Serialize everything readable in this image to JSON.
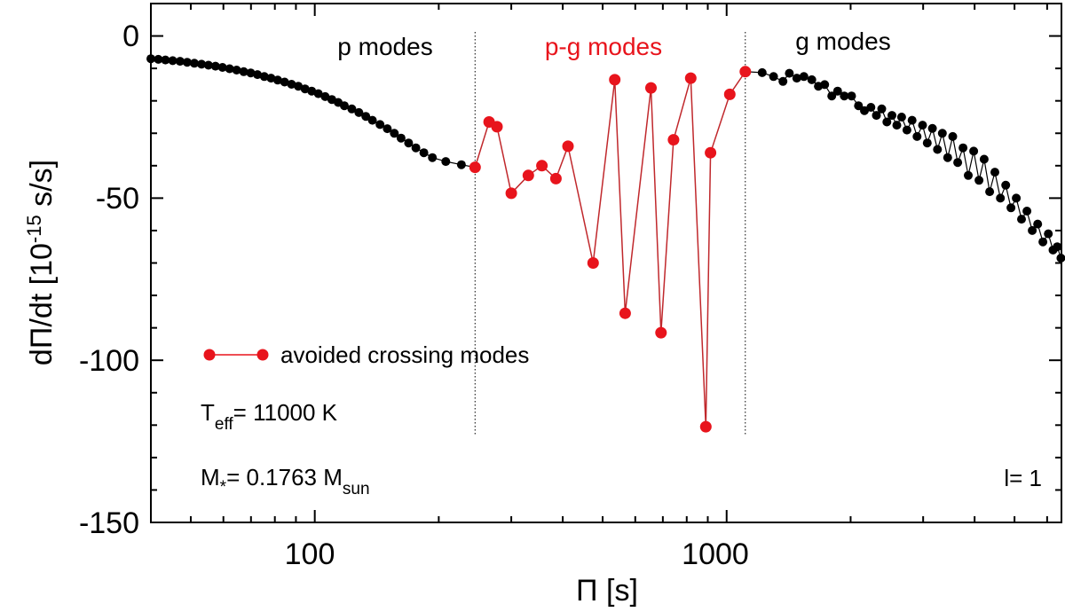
{
  "chart_data": {
    "type": "scatter",
    "xscale": "log",
    "xlim": [
      40,
      6500
    ],
    "ylim": [
      -150,
      10
    ],
    "xlabel": "Π [s]",
    "ylabel": {
      "base": "dΠ/dt [10",
      "exponent": "-15",
      "unit": " s/s]"
    },
    "x_ticks": [
      100,
      1000
    ],
    "x_tick_labels": [
      "100",
      "1000"
    ],
    "y_ticks": [
      0,
      -50,
      -100,
      -150
    ],
    "y_tick_labels": [
      "0",
      "-50",
      "-100",
      "-150"
    ],
    "region_labels": {
      "p": "p modes",
      "pg": "p-g modes",
      "g": "g modes"
    },
    "region_boundaries": [
      245,
      1110
    ],
    "legend": {
      "label": "avoided crossing modes",
      "placement": "lower-left"
    },
    "annotations": {
      "teff": {
        "symbol": "T",
        "sub": "eff",
        "rest": "= 11000 K"
      },
      "mass": {
        "symbol": "M",
        "sub": "*",
        "rest": "= 0.1763 M",
        "sub2": "sun"
      },
      "degree": "l= 1"
    },
    "series": [
      {
        "name": "p modes",
        "color": "#000000",
        "points": [
          [
            40.0,
            -7.0
          ],
          [
            41.7,
            -7.2
          ],
          [
            43.4,
            -7.4
          ],
          [
            45.2,
            -7.6
          ],
          [
            47.1,
            -7.8
          ],
          [
            49.0,
            -8.1
          ],
          [
            51.0,
            -8.4
          ],
          [
            53.1,
            -8.7
          ],
          [
            55.2,
            -9.0
          ],
          [
            57.4,
            -9.3
          ],
          [
            59.7,
            -9.7
          ],
          [
            62.1,
            -10.1
          ],
          [
            64.6,
            -10.5
          ],
          [
            67.2,
            -11.0
          ],
          [
            69.9,
            -11.4
          ],
          [
            72.6,
            -11.9
          ],
          [
            75.4,
            -12.5
          ],
          [
            78.3,
            -13.0
          ],
          [
            81.3,
            -13.6
          ],
          [
            84.5,
            -14.2
          ],
          [
            87.8,
            -14.9
          ],
          [
            91.2,
            -15.5
          ],
          [
            94.7,
            -16.3
          ],
          [
            98.3,
            -17.0
          ],
          [
            102,
            -17.8
          ],
          [
            106,
            -18.7
          ],
          [
            110,
            -19.6
          ],
          [
            114,
            -20.5
          ],
          [
            118,
            -21.5
          ],
          [
            123,
            -22.5
          ],
          [
            128,
            -23.6
          ],
          [
            133,
            -24.8
          ],
          [
            138,
            -26.0
          ],
          [
            144,
            -27.3
          ],
          [
            150,
            -28.6
          ],
          [
            156,
            -30.0
          ],
          [
            162,
            -31.5
          ],
          [
            169,
            -33.0
          ],
          [
            176,
            -34.5
          ],
          [
            184,
            -36.0
          ],
          [
            193,
            -37.5
          ],
          [
            208,
            -38.7
          ],
          [
            227,
            -39.7
          ]
        ]
      },
      {
        "name": "avoided crossing modes",
        "color": "#e8141c",
        "points": [
          [
            245,
            -40.5
          ],
          [
            265,
            -26.5
          ],
          [
            277,
            -28.0
          ],
          [
            300,
            -48.5
          ],
          [
            330,
            -43.0
          ],
          [
            356,
            -40.0
          ],
          [
            385,
            -44.0
          ],
          [
            412,
            -34.0
          ],
          [
            474,
            -70.0
          ],
          [
            535,
            -13.5
          ],
          [
            567,
            -85.5
          ],
          [
            655,
            -16.0
          ],
          [
            693,
            -91.5
          ],
          [
            743,
            -32.0
          ],
          [
            818,
            -13.0
          ],
          [
            890,
            -120.5
          ],
          [
            914,
            -36.0
          ],
          [
            1018,
            -18.0
          ],
          [
            1110,
            -11.0
          ]
        ]
      },
      {
        "name": "g modes",
        "color": "#000000",
        "points": [
          [
            1220,
            -11.3
          ],
          [
            1300,
            -12.5
          ],
          [
            1370,
            -14.0
          ],
          [
            1420,
            -11.5
          ],
          [
            1480,
            -13.0
          ],
          [
            1540,
            -12.5
          ],
          [
            1610,
            -13.5
          ],
          [
            1670,
            -15.5
          ],
          [
            1730,
            -15.0
          ],
          [
            1800,
            -18.5
          ],
          [
            1860,
            -17.0
          ],
          [
            1930,
            -18.5
          ],
          [
            2010,
            -18.5
          ],
          [
            2090,
            -21.5
          ],
          [
            2160,
            -23.0
          ],
          [
            2240,
            -22.0
          ],
          [
            2310,
            -24.5
          ],
          [
            2380,
            -22.5
          ],
          [
            2450,
            -26.5
          ],
          [
            2520,
            -24.5
          ],
          [
            2590,
            -27.5
          ],
          [
            2660,
            -25.0
          ],
          [
            2740,
            -29.0
          ],
          [
            2820,
            -26.0
          ],
          [
            2900,
            -31.0
          ],
          [
            2990,
            -27.5
          ],
          [
            3070,
            -33.0
          ],
          [
            3160,
            -28.5
          ],
          [
            3250,
            -35.0
          ],
          [
            3340,
            -30.0
          ],
          [
            3440,
            -37.5
          ],
          [
            3540,
            -31.0
          ],
          [
            3640,
            -39.0
          ],
          [
            3750,
            -34.5
          ],
          [
            3860,
            -43.0
          ],
          [
            3980,
            -35.5
          ],
          [
            4100,
            -44.5
          ],
          [
            4220,
            -38.0
          ],
          [
            4350,
            -48.0
          ],
          [
            4480,
            -42.0
          ],
          [
            4620,
            -50.0
          ],
          [
            4760,
            -46.0
          ],
          [
            4900,
            -53.0
          ],
          [
            5050,
            -50.0
          ],
          [
            5200,
            -56.5
          ],
          [
            5360,
            -54.0
          ],
          [
            5520,
            -60.0
          ],
          [
            5690,
            -58.0
          ],
          [
            5860,
            -63.5
          ],
          [
            6040,
            -61.0
          ],
          [
            6200,
            -66.0
          ],
          [
            6350,
            -65.0
          ],
          [
            6480,
            -68.5
          ]
        ]
      }
    ]
  }
}
